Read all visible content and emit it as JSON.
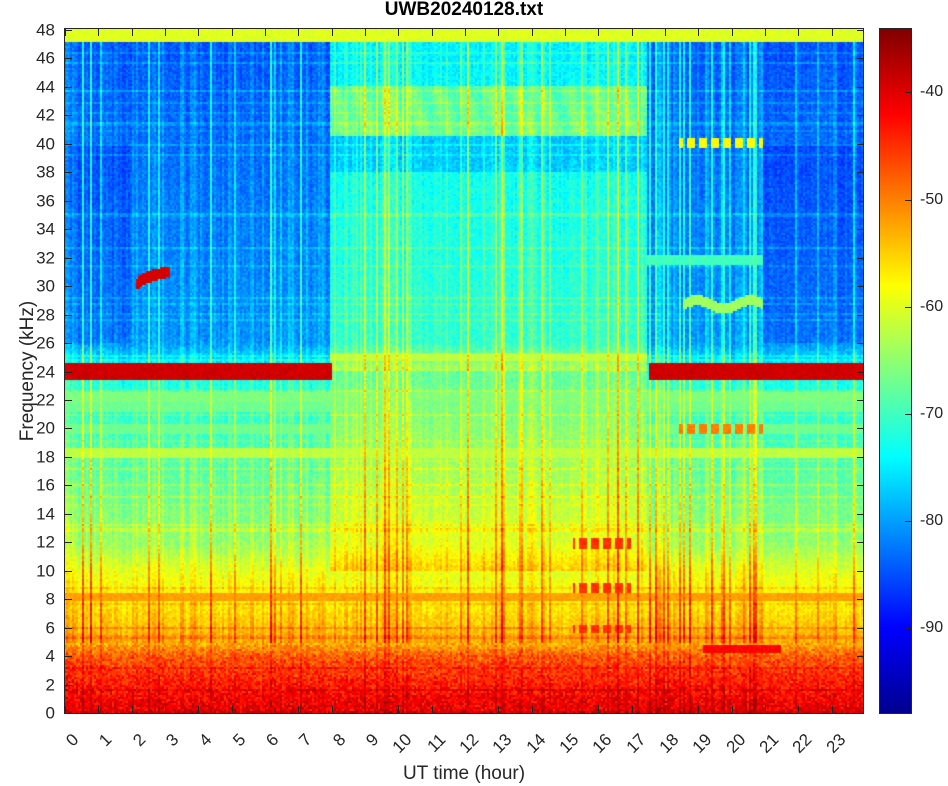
{
  "chart_data": {
    "type": "heatmap",
    "title": "UWB20240128.txt",
    "xlabel": "UT time (hour)",
    "ylabel": "Frequency (kHz)",
    "xlim": [
      0,
      24
    ],
    "ylim": [
      0,
      48
    ],
    "xticks": [
      "0",
      "1",
      "2",
      "3",
      "4",
      "5",
      "6",
      "7",
      "8",
      "9",
      "10",
      "11",
      "12",
      "13",
      "14",
      "15",
      "16",
      "17",
      "18",
      "19",
      "20",
      "21",
      "22",
      "23"
    ],
    "yticks": [
      "0",
      "2",
      "4",
      "6",
      "8",
      "10",
      "12",
      "14",
      "16",
      "18",
      "20",
      "22",
      "24",
      "26",
      "28",
      "30",
      "32",
      "34",
      "36",
      "38",
      "40",
      "42",
      "44",
      "46",
      "48"
    ],
    "colorbar": {
      "clim": [
        -98,
        -34
      ],
      "ticks": [
        "-40",
        "-50",
        "-60",
        "-70",
        "-80",
        "-90"
      ],
      "colormap": "jet"
    },
    "background_profile_db": [
      [
        0,
        -41
      ],
      [
        1,
        -42
      ],
      [
        2,
        -44
      ],
      [
        3,
        -46
      ],
      [
        4,
        -48
      ],
      [
        5,
        -54
      ],
      [
        7,
        -57
      ],
      [
        10,
        -61
      ],
      [
        12,
        -66
      ],
      [
        16,
        -69
      ],
      [
        24,
        -74
      ],
      [
        26,
        -82
      ],
      [
        48,
        -86
      ]
    ],
    "daytime_period": [
      8.0,
      17.5
    ],
    "features": [
      {
        "name": "24 kHz transmitter",
        "t": [
          0,
          8.0
        ],
        "f": 24.0,
        "db": -39
      },
      {
        "name": "24 kHz transmitter",
        "t": [
          17.6,
          24
        ],
        "f": 24.0,
        "db": -39
      },
      {
        "name": "25 kHz line",
        "t": [
          8.0,
          17.5
        ],
        "f": 25.0,
        "db": -62
      },
      {
        "name": "top band",
        "t": [
          0,
          24
        ],
        "f": 47.8,
        "db": -60
      },
      {
        "name": "18.3 kHz line",
        "t": [
          0,
          24
        ],
        "f": 18.3,
        "db": -62
      },
      {
        "name": "8.2 kHz line",
        "t": [
          0,
          24
        ],
        "f": 8.2,
        "db": -52
      },
      {
        "name": "22 kHz line",
        "t": [
          0,
          24
        ],
        "f": 22.2,
        "db": -66
      },
      {
        "name": "21.5 kHz line",
        "t": [
          0,
          24
        ],
        "f": 21.5,
        "db": -67
      },
      {
        "name": "20 kHz line",
        "t": [
          0,
          24
        ],
        "f": 20.0,
        "db": -67
      },
      {
        "name": "40 kHz bursts",
        "t": [
          18.5,
          21.0
        ],
        "f": 40.0,
        "db": -58
      },
      {
        "name": "20 kHz bursts",
        "t": [
          18.5,
          21.0
        ],
        "f": 20.0,
        "db": -50
      },
      {
        "name": "4.5 kHz signal",
        "t": [
          19.2,
          21.5
        ],
        "f": 4.5,
        "db": -42
      },
      {
        "name": "12 kHz bursts",
        "t": [
          15.3,
          17.0
        ],
        "f": 11.9,
        "db": -45
      },
      {
        "name": "9 kHz bursts",
        "t": [
          15.3,
          17.0
        ],
        "f": 8.8,
        "db": -45
      },
      {
        "name": "6 kHz bursts",
        "t": [
          15.3,
          17.0
        ],
        "f": 5.9,
        "db": -45
      },
      {
        "name": "31 kHz arc",
        "t": [
          2.2,
          3.1
        ],
        "f": 31.0,
        "db": -40
      },
      {
        "name": "28.7 kHz arcs",
        "t": [
          18.6,
          21.0
        ],
        "f": 28.7,
        "db": -64
      },
      {
        "name": "32 kHz line",
        "t": [
          17.5,
          21
        ],
        "f": 31.8,
        "db": -70
      }
    ]
  }
}
